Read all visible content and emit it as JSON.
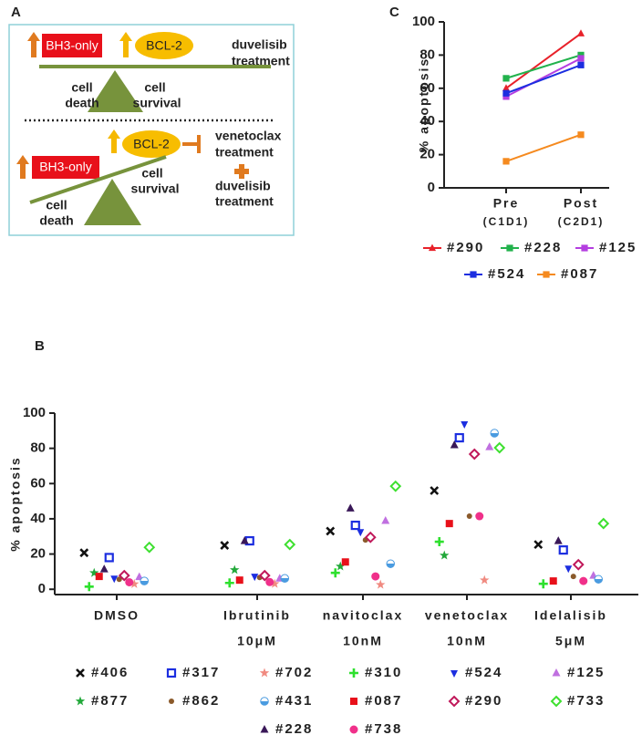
{
  "diagram": {
    "panel": "A",
    "top": {
      "left_box": "BH3-only",
      "right_oval": "BCL-2",
      "treatment": [
        "duvelisib",
        "treatment"
      ],
      "left_label": [
        "cell",
        "death"
      ],
      "right_label": [
        "cell",
        "survival"
      ]
    },
    "bottom": {
      "left_box": "BH3-only",
      "right_oval": "BCL-2",
      "treatment": [
        "venetoclax",
        "treatment"
      ],
      "combo": [
        "duvelisib",
        "treatment"
      ],
      "left_label": [
        "cell",
        "death"
      ],
      "right_label": [
        "cell",
        "survival"
      ]
    }
  },
  "chart_data": [
    {
      "type": "line",
      "panel": "C",
      "y_label": "% apoptosis",
      "categories": [
        "Pre",
        "Post"
      ],
      "category_sublabels": [
        "(C1D1)",
        "(C2D1)"
      ],
      "ylim": [
        0,
        100
      ],
      "yticks": [
        0,
        20,
        40,
        60,
        80,
        100
      ],
      "series": [
        {
          "name": "#290",
          "color": "#e8212a",
          "marker": "triangle",
          "values": [
            60,
            93
          ]
        },
        {
          "name": "#228",
          "color": "#22b24c",
          "marker": "square",
          "values": [
            66,
            80
          ]
        },
        {
          "name": "#125",
          "color": "#b43ee0",
          "marker": "square",
          "values": [
            55,
            78
          ]
        },
        {
          "name": "#524",
          "color": "#1c2ee0",
          "marker": "square",
          "values": [
            57,
            74
          ]
        },
        {
          "name": "#087",
          "color": "#f58a1f",
          "marker": "square",
          "values": [
            16,
            32
          ]
        }
      ]
    },
    {
      "type": "strip",
      "panel": "B",
      "y_label": "% apoptosis",
      "categories": [
        "DMSO",
        "Ibrutinib",
        "navitoclax",
        "venetoclax",
        "Idelalisib"
      ],
      "category_sublabels": [
        null,
        "10μM",
        "10nM",
        "10nM",
        "5μM"
      ],
      "ylim": [
        -3,
        100
      ],
      "yticks": [
        0,
        20,
        40,
        60,
        80,
        100
      ],
      "series": [
        {
          "name": "#406",
          "color": "#111111",
          "marker": "x",
          "values": [
            20.7,
            24.9,
            33,
            56,
            25.4
          ]
        },
        {
          "name": "#317",
          "color": "#1c2ee0",
          "marker": "square-open",
          "values": [
            18,
            27.5,
            36.3,
            86,
            22.3
          ]
        },
        {
          "name": "#702",
          "color": "#f08a80",
          "marker": "star",
          "values": [
            3,
            3.1,
            2.6,
            5.2,
            null
          ]
        },
        {
          "name": "#310",
          "color": "#2ee02e",
          "marker": "plus",
          "values": [
            1.5,
            3.6,
            9.3,
            27,
            3.1
          ]
        },
        {
          "name": "#524",
          "color": "#1c2ee0",
          "marker": "triangle-down",
          "values": [
            6.2,
            7.3,
            32.6,
            93.8,
            11.9
          ]
        },
        {
          "name": "#125",
          "color": "#c070e0",
          "marker": "triangle",
          "values": [
            7,
            6.2,
            38.9,
            80.8,
            7.8
          ]
        },
        {
          "name": "#877",
          "color": "#22a83a",
          "marker": "star",
          "values": [
            9.3,
            11,
            13,
            19.2,
            null
          ]
        },
        {
          "name": "#862",
          "color": "#8b5a2b",
          "marker": "circle-small",
          "values": [
            5.7,
            6.7,
            28,
            41.5,
            7.3
          ]
        },
        {
          "name": "#431",
          "color": "#4a9be0",
          "marker": "half-circle",
          "values": [
            4.7,
            6.2,
            14.5,
            88.6,
            5.7
          ]
        },
        {
          "name": "#087",
          "color": "#e8101a",
          "marker": "square",
          "values": [
            7.3,
            5.2,
            15.5,
            37.3,
            4.7
          ]
        },
        {
          "name": "#290",
          "color": "#c0185a",
          "marker": "diamond-open",
          "values": [
            7.8,
            7.8,
            29.5,
            76.7,
            14
          ]
        },
        {
          "name": "#733",
          "color": "#3ee030",
          "marker": "diamond-open",
          "values": [
            23.8,
            25.4,
            58.5,
            80.3,
            37.3
          ]
        },
        {
          "name": "#228",
          "color": "#3a1858",
          "marker": "triangle",
          "values": [
            11.4,
            27.5,
            46,
            81.9,
            27.5
          ]
        },
        {
          "name": "#738",
          "color": "#f0308a",
          "marker": "circle",
          "values": [
            4,
            4.1,
            7.3,
            41.5,
            4.7
          ]
        }
      ]
    }
  ]
}
